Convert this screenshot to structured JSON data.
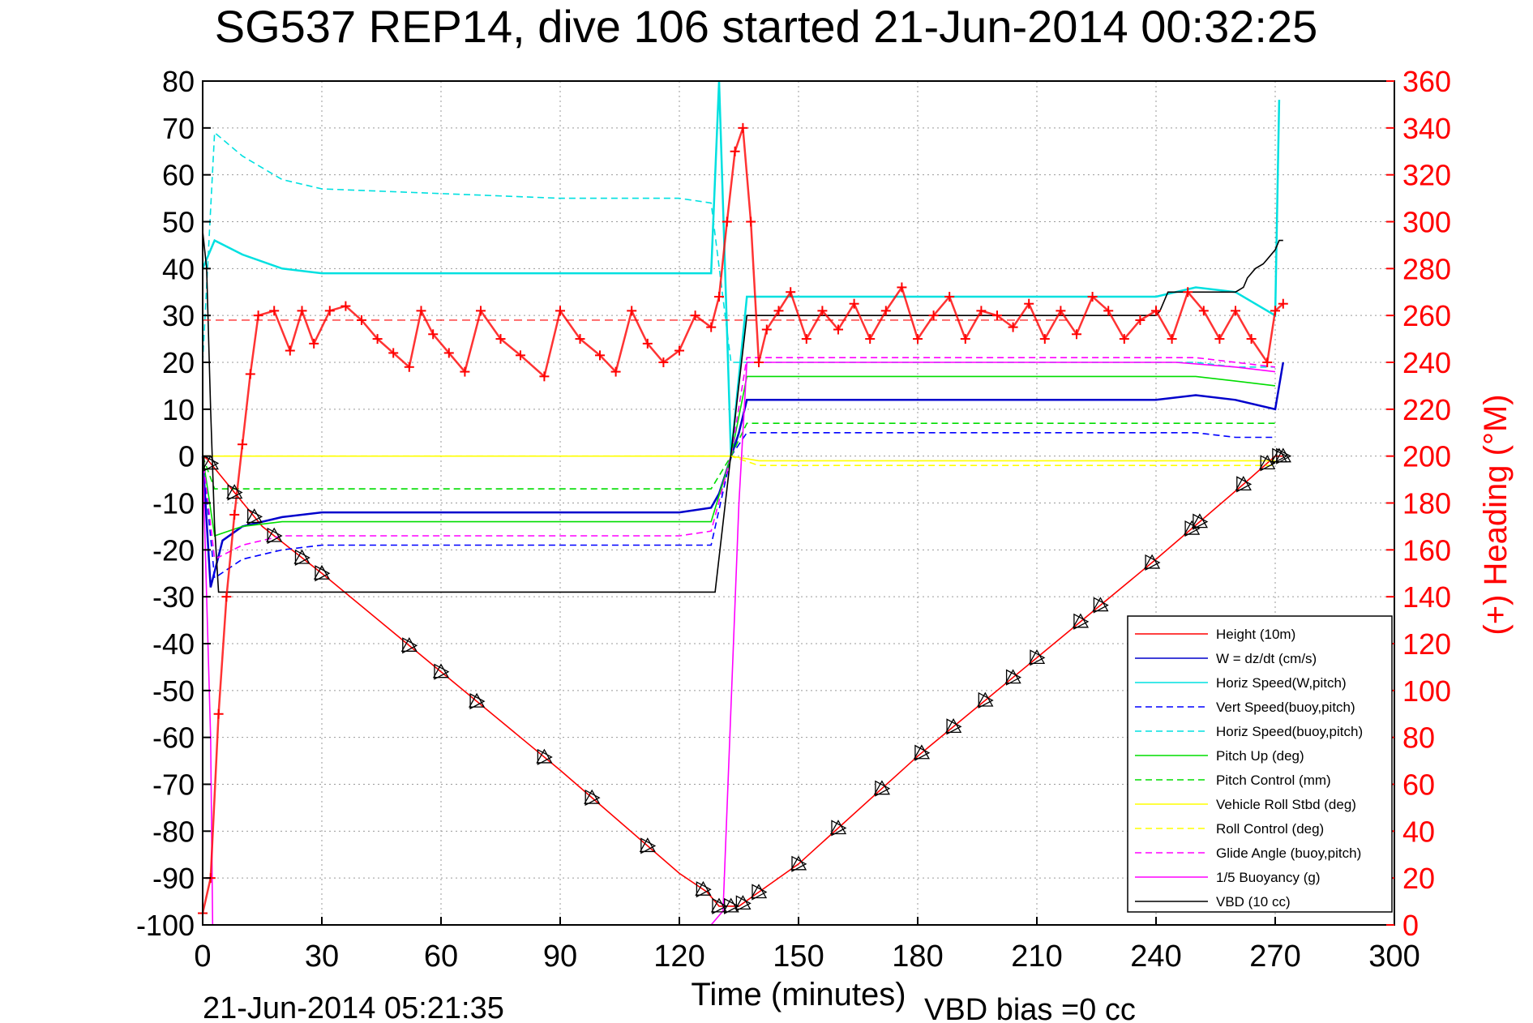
{
  "chart_data": {
    "type": "line",
    "title": "SG537 REP14, dive 106 started 21-Jun-2014 00:32:25",
    "xlabel": "Time (minutes)",
    "ylabel_right": "(+) Heading (°M)",
    "footer_left": "21-Jun-2014 05:21:35",
    "footer_right": "VBD bias =0 cc",
    "xlim": [
      0,
      300
    ],
    "ylim_left": [
      -100,
      80
    ],
    "ylim_right": [
      0,
      360
    ],
    "x_ticks": [
      0,
      30,
      60,
      90,
      120,
      150,
      180,
      210,
      240,
      270,
      300
    ],
    "y_left_ticks": [
      80,
      70,
      60,
      50,
      40,
      30,
      20,
      10,
      0,
      -10,
      -20,
      -30,
      -40,
      -50,
      -60,
      -70,
      -80,
      -90,
      -100
    ],
    "y_right_ticks": [
      360,
      340,
      320,
      300,
      280,
      260,
      240,
      220,
      200,
      180,
      160,
      140,
      120,
      100,
      80,
      60,
      40,
      20,
      0
    ],
    "grid": true,
    "legend_position": "bottom-right",
    "colors": {
      "heading": "#ff0000",
      "height": "#ff0000",
      "w": "#0000cc",
      "horiz": "#00e0e0",
      "pitch": "#00dd00",
      "roll": "#ffff00",
      "glide": "#ff00ff",
      "vbd": "#000000"
    },
    "series": [
      {
        "name": "Height (10m)",
        "color": "#ff0000",
        "style": "solid",
        "axis": "left",
        "x": [
          0,
          1,
          15,
          30,
          60,
          90,
          120,
          127,
          130,
          135,
          140,
          150,
          180,
          210,
          240,
          262,
          270,
          272
        ],
        "y": [
          0,
          -0.5,
          -15,
          -25,
          -46,
          -67,
          -89,
          -93,
          -96,
          -96,
          -93,
          -87,
          -64,
          -43,
          -22,
          -6,
          0,
          0
        ]
      },
      {
        "name": "W = dz/dt (cm/s)",
        "color": "#0000cc",
        "style": "solid",
        "axis": "left",
        "x": [
          0,
          2,
          5,
          10,
          20,
          30,
          60,
          90,
          120,
          128,
          130,
          135,
          137,
          140,
          150,
          180,
          210,
          240,
          250,
          260,
          270,
          272
        ],
        "y": [
          0,
          -28,
          -18,
          -15,
          -13,
          -12,
          -12,
          -12,
          -12,
          -11,
          -8,
          5,
          12,
          12,
          12,
          12,
          12,
          12,
          13,
          12,
          10,
          20
        ]
      },
      {
        "name": "Horiz Speed(W,pitch)",
        "color": "#00e0e0",
        "style": "solid",
        "axis": "left",
        "x": [
          0,
          3,
          10,
          20,
          30,
          60,
          90,
          120,
          128,
          130,
          133,
          137,
          140,
          150,
          180,
          210,
          240,
          250,
          260,
          270,
          271
        ],
        "y": [
          40,
          46,
          43,
          40,
          39,
          39,
          39,
          39,
          39,
          80,
          0,
          34,
          34,
          34,
          34,
          34,
          34,
          36,
          35,
          30,
          76
        ]
      },
      {
        "name": "Vert Speed(buoy,pitch)",
        "color": "#0000ff",
        "style": "dashed",
        "axis": "left",
        "x": [
          0,
          3,
          10,
          20,
          30,
          60,
          90,
          120,
          128,
          133,
          137,
          140,
          150,
          180,
          210,
          240,
          250,
          260,
          270
        ],
        "y": [
          0,
          -26,
          -22,
          -20,
          -19,
          -19,
          -19,
          -19,
          -19,
          0,
          5,
          5,
          5,
          5,
          5,
          5,
          5,
          4,
          4
        ]
      },
      {
        "name": "Horiz Speed(buoy,pitch)",
        "color": "#00e0e0",
        "style": "dashed",
        "axis": "left",
        "x": [
          0,
          3,
          10,
          20,
          30,
          60,
          90,
          120,
          128,
          133,
          137,
          140,
          150,
          180,
          210,
          240,
          250,
          260,
          270
        ],
        "y": [
          20,
          69,
          64,
          59,
          57,
          56,
          55,
          55,
          54,
          20,
          20,
          20,
          20,
          20,
          20,
          20,
          20,
          19,
          19
        ]
      },
      {
        "name": "Pitch Up (deg)",
        "color": "#00dd00",
        "style": "solid",
        "axis": "left",
        "x": [
          0,
          3,
          10,
          20,
          30,
          60,
          90,
          120,
          128,
          133,
          137,
          140,
          150,
          180,
          210,
          240,
          250,
          260,
          270
        ],
        "y": [
          0,
          -17,
          -15,
          -14,
          -14,
          -14,
          -14,
          -14,
          -14,
          0,
          17,
          17,
          17,
          17,
          17,
          17,
          17,
          16,
          15
        ]
      },
      {
        "name": "Pitch Control (mm)",
        "color": "#00dd00",
        "style": "dashed",
        "axis": "left",
        "x": [
          0,
          3,
          10,
          30,
          60,
          90,
          120,
          128,
          133,
          137,
          140,
          170,
          200,
          240,
          250,
          270
        ],
        "y": [
          0,
          -7,
          -7,
          -7,
          -7,
          -7,
          -7,
          -7,
          0,
          7,
          7,
          7,
          7,
          7,
          7,
          7
        ]
      },
      {
        "name": "Vehicle Roll Stbd (deg)",
        "color": "#ffff00",
        "style": "solid",
        "axis": "left",
        "x": [
          0,
          10,
          30,
          60,
          90,
          120,
          128,
          133,
          140,
          180,
          240,
          270
        ],
        "y": [
          0,
          0,
          0,
          0,
          0,
          0,
          0,
          0,
          -1,
          -1,
          -1,
          -1
        ]
      },
      {
        "name": "Roll Control (deg)",
        "color": "#ffff00",
        "style": "dashed",
        "axis": "left",
        "x": [
          0,
          10,
          30,
          60,
          90,
          120,
          128,
          133,
          140,
          180,
          240,
          270
        ],
        "y": [
          0,
          0,
          0,
          0,
          0,
          0,
          0,
          0,
          -2,
          -2,
          -2,
          -2
        ]
      },
      {
        "name": "Glide Angle (buoy,pitch)",
        "color": "#ff00ff",
        "style": "dashed",
        "axis": "left",
        "x": [
          0,
          3,
          10,
          20,
          30,
          60,
          90,
          120,
          128,
          133,
          137,
          140,
          150,
          180,
          210,
          240,
          250,
          260,
          270
        ],
        "y": [
          0,
          -22,
          -19,
          -17,
          -17,
          -17,
          -17,
          -17,
          -16,
          0,
          21,
          21,
          21,
          21,
          21,
          21,
          21,
          20,
          19
        ]
      },
      {
        "name": "1/5 Buoyancy (g)",
        "color": "#ff00ff",
        "style": "solid",
        "axis": "left",
        "x": [
          0,
          2,
          2.5,
          3,
          10,
          30,
          60,
          90,
          120,
          128,
          131,
          135,
          137,
          140,
          180,
          240,
          245,
          260,
          270
        ],
        "y": [
          0,
          -60,
          -100,
          -100,
          -100,
          -100,
          -100,
          -100,
          -100,
          -100,
          -97,
          -10,
          20,
          20,
          20,
          20,
          20,
          19,
          18
        ]
      },
      {
        "name": "VBD (10 cc)",
        "color": "#000000",
        "style": "solid",
        "axis": "left",
        "x": [
          0,
          1,
          2,
          3,
          4,
          10,
          128,
          129,
          137,
          138,
          150,
          180,
          240,
          241,
          243,
          260,
          262,
          263,
          265,
          267,
          268,
          270,
          271,
          272
        ],
        "y": [
          48,
          40,
          10,
          -15,
          -29,
          -29,
          -29,
          -29,
          30,
          30,
          30,
          30,
          30,
          31,
          35,
          35,
          36,
          38,
          40,
          41,
          42,
          44,
          46,
          46
        ]
      },
      {
        "name": "Heading",
        "color": "#ff0000",
        "style": "markers",
        "axis": "right",
        "x": [
          0,
          2,
          4,
          6,
          8,
          10,
          12,
          14,
          18,
          22,
          25,
          28,
          32,
          36,
          40,
          44,
          48,
          52,
          55,
          58,
          62,
          66,
          70,
          75,
          80,
          86,
          90,
          95,
          100,
          104,
          108,
          112,
          116,
          120,
          124,
          128,
          130,
          132,
          134,
          136,
          138,
          140,
          142,
          145,
          148,
          152,
          156,
          160,
          164,
          168,
          172,
          176,
          180,
          184,
          188,
          192,
          196,
          200,
          204,
          208,
          212,
          216,
          220,
          224,
          228,
          232,
          236,
          240,
          244,
          248,
          252,
          256,
          260,
          264,
          268,
          270,
          272
        ],
        "y": [
          5,
          20,
          90,
          140,
          175,
          205,
          235,
          260,
          262,
          245,
          262,
          248,
          262,
          264,
          258,
          250,
          244,
          238,
          262,
          252,
          244,
          236,
          262,
          250,
          243,
          234,
          262,
          250,
          243,
          236,
          262,
          248,
          240,
          245,
          260,
          255,
          268,
          300,
          330,
          340,
          300,
          240,
          254,
          262,
          270,
          250,
          262,
          254,
          265,
          250,
          262,
          272,
          250,
          260,
          268,
          250,
          262,
          260,
          255,
          265,
          250,
          262,
          252,
          268,
          262,
          250,
          258,
          262,
          250,
          270,
          262,
          250,
          262,
          250,
          240,
          262,
          265
        ]
      }
    ],
    "depth_markers_x": [
      2,
      8,
      13,
      18,
      25,
      30,
      52,
      60,
      69,
      86,
      98,
      112,
      126,
      130,
      133,
      136,
      140,
      150,
      160,
      171,
      181,
      189,
      197,
      204,
      210,
      221,
      226,
      239,
      249,
      251,
      262,
      268,
      271,
      272
    ]
  }
}
